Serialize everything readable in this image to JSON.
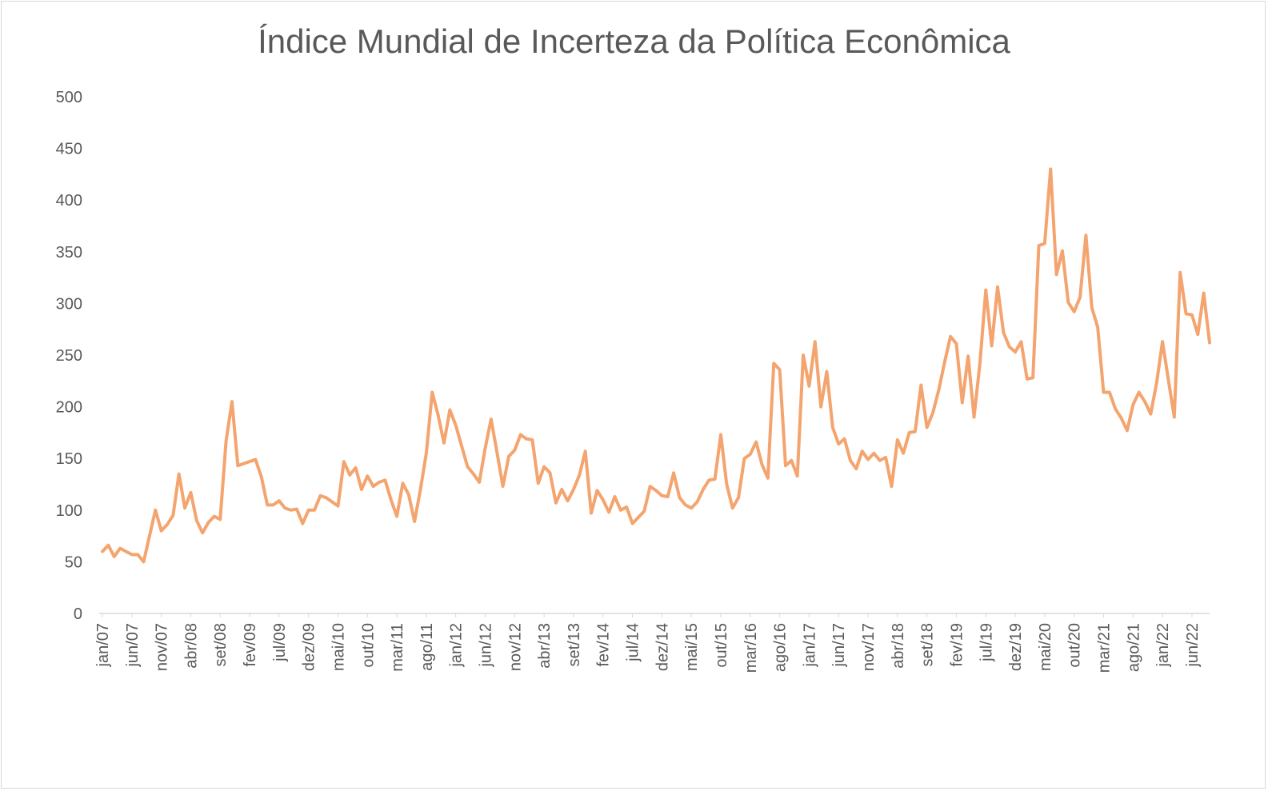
{
  "chart_data": {
    "type": "line",
    "title": "Índice Mundial de Incerteza da Política Econômica",
    "xlabel": "",
    "ylabel": "",
    "ylim": [
      0,
      500
    ],
    "yticks": [
      0,
      50,
      100,
      150,
      200,
      250,
      300,
      350,
      400,
      450,
      500
    ],
    "grid": false,
    "legend": "none",
    "line_color": "#f4a46e",
    "x_tick_labels": [
      "jan/07",
      "jun/07",
      "nov/07",
      "abr/08",
      "set/08",
      "fev/09",
      "jul/09",
      "dez/09",
      "mai/10",
      "out/10",
      "mar/11",
      "ago/11",
      "jan/12",
      "jun/12",
      "nov/12",
      "abr/13",
      "set/13",
      "fev/14",
      "jul/14",
      "dez/14",
      "mai/15",
      "out/15",
      "mar/16",
      "ago/16",
      "jan/17",
      "jun/17",
      "nov/17",
      "abr/18",
      "set/18",
      "fev/19",
      "jul/19",
      "dez/19",
      "mai/20",
      "out/20",
      "mar/21",
      "ago/21",
      "jan/22",
      "jun/22"
    ],
    "x_start": "jan/07",
    "x_end": "set/22",
    "series": [
      {
        "values": [
          60,
          66,
          55,
          63,
          60,
          57,
          57,
          50,
          75,
          100,
          80,
          86,
          95,
          135,
          102,
          117,
          90,
          78,
          88,
          94,
          91,
          167,
          205,
          143,
          145,
          147,
          149,
          132,
          105,
          105,
          109,
          102,
          100,
          101,
          87,
          100,
          100,
          114,
          112,
          108,
          104,
          147,
          134,
          141,
          120,
          133,
          123,
          127,
          129,
          110,
          94,
          126,
          115,
          89,
          120,
          155,
          214,
          192,
          165,
          197,
          182,
          162,
          142,
          135,
          127,
          160,
          188,
          156,
          123,
          152,
          158,
          173,
          169,
          168,
          126,
          142,
          136,
          107,
          120,
          109,
          120,
          134,
          157,
          97,
          119,
          110,
          98,
          113,
          100,
          103,
          87,
          93,
          99,
          123,
          119,
          114,
          113,
          136,
          112,
          105,
          102,
          108,
          120,
          129,
          130,
          173,
          125,
          102,
          112,
          150,
          154,
          166,
          144,
          131,
          242,
          236,
          143,
          148,
          133,
          250,
          220,
          263,
          200,
          234,
          180,
          164,
          169,
          148,
          140,
          157,
          149,
          155,
          148,
          151,
          123,
          168,
          155,
          175,
          176,
          221,
          180,
          194,
          216,
          243,
          268,
          261,
          204,
          249,
          190,
          242,
          313,
          259,
          316,
          272,
          258,
          253,
          263,
          227,
          228,
          356,
          358,
          430,
          328,
          351,
          301,
          292,
          306,
          366,
          296,
          277,
          214,
          214,
          198,
          189,
          177,
          202,
          214,
          205,
          193,
          223,
          263,
          226,
          190,
          330,
          290,
          289,
          270,
          310,
          262
        ]
      }
    ]
  }
}
